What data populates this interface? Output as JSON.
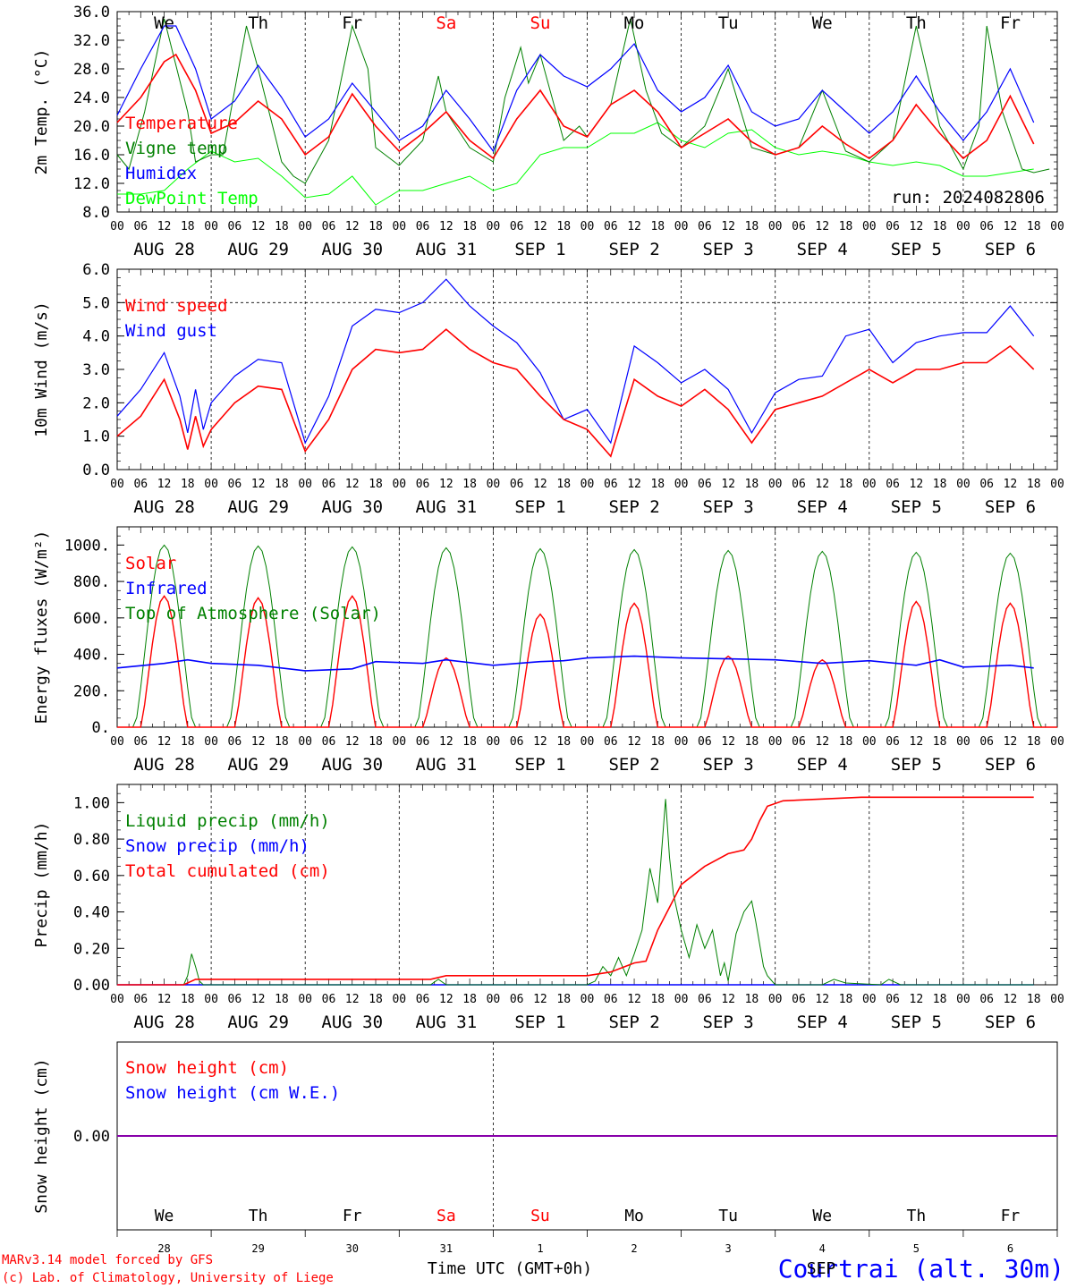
{
  "footer": {
    "credit_line1": "MARv3.14 model forced by GFS",
    "credit_line2": "(c) Lab. of Climatology, University of Liege",
    "time_axis_title": "Time UTC (GMT+0h)",
    "station": "Courtrai (alt. 30m)",
    "overlay_label": "SEP"
  },
  "colors": {
    "temperature": "#ff0000",
    "vigne": "#008000",
    "humidex": "#0000ff",
    "dewpoint": "#00ff00",
    "weekend": "#ff0000",
    "axis": "#000000",
    "snow": "#8800aa",
    "station": "#0000ff"
  },
  "days": {
    "weekday_labels": [
      "We",
      "Th",
      "Fr",
      "Sa",
      "Su",
      "Mo",
      "Tu",
      "We",
      "Th",
      "Fr"
    ],
    "weekend_days": [
      3,
      4
    ],
    "date_labels": [
      "AUG 28",
      "AUG 29",
      "AUG 30",
      "AUG 31",
      "SEP  1",
      "SEP  2",
      "SEP  3",
      "SEP  4",
      "SEP  5",
      "SEP  6"
    ],
    "hour_ticks": [
      "00",
      "06",
      "12",
      "18"
    ],
    "end_tick": "00",
    "day_numbers": [
      "28",
      "29",
      "30",
      "31",
      "1",
      "2",
      "3",
      "4",
      "5",
      "6"
    ]
  },
  "chart_data": [
    {
      "type": "line",
      "ylabel": "2m Temp. (°C)",
      "ylim": [
        8,
        36
      ],
      "yticks": [
        "8.0",
        "12.0",
        "16.0",
        "20.0",
        "24.0",
        "28.0",
        "32.0",
        "36.0"
      ],
      "annotation": "run: 2024082806",
      "x_hours_from": "AUG 28 00 UTC",
      "legend": [
        "Temperature",
        "Vigne temp",
        "Humidex",
        "DewPoint Temp"
      ],
      "series": [
        {
          "name": "Temperature",
          "x": [
            0,
            6,
            12,
            15,
            20,
            24,
            30,
            36,
            42,
            48,
            54,
            60,
            66,
            72,
            78,
            84,
            90,
            96,
            102,
            108,
            114,
            120,
            126,
            132,
            138,
            144,
            150,
            156,
            162,
            168,
            174,
            180,
            186,
            192,
            198,
            204,
            210,
            216,
            222,
            228,
            234
          ],
          "values": [
            20.5,
            24,
            29,
            30,
            25,
            19,
            20.5,
            23.5,
            21,
            16,
            18.5,
            24.5,
            20,
            16.5,
            19,
            22,
            18,
            15.5,
            21,
            25,
            20,
            18.5,
            23,
            25,
            22,
            17,
            19,
            21,
            17.8,
            16,
            17,
            20,
            17.5,
            15.5,
            18,
            23,
            19,
            15.5,
            18,
            24.2,
            17.5
          ]
        },
        {
          "name": "Vigne temp",
          "x": [
            0,
            3,
            7,
            12,
            18,
            20,
            24,
            27,
            33,
            36,
            42,
            45,
            48,
            54,
            60,
            64,
            66,
            72,
            78,
            82,
            84,
            90,
            96,
            99,
            103,
            105,
            108,
            112,
            114,
            118,
            120,
            126,
            131,
            135,
            139,
            144,
            150,
            156,
            162,
            168,
            174,
            180,
            186,
            192,
            198,
            204,
            210,
            216,
            220,
            222,
            226,
            231,
            234,
            238
          ],
          "values": [
            16,
            14,
            22,
            35,
            22,
            15,
            16,
            16,
            34,
            28,
            15,
            13,
            12,
            18,
            34,
            28,
            17,
            14.5,
            18,
            27,
            22,
            17,
            15,
            24,
            31,
            26,
            30,
            22,
            18,
            20,
            18.5,
            23,
            35,
            25,
            19,
            17,
            20,
            28,
            17,
            16,
            17,
            25,
            16.5,
            15,
            18,
            34,
            20,
            14,
            20,
            34,
            22,
            14,
            13.5,
            14
          ]
        },
        {
          "name": "Humidex",
          "x": [
            0,
            6,
            12,
            15,
            20,
            24,
            30,
            36,
            42,
            48,
            54,
            60,
            66,
            72,
            78,
            84,
            90,
            96,
            102,
            108,
            114,
            120,
            126,
            132,
            138,
            144,
            150,
            156,
            162,
            168,
            174,
            180,
            186,
            192,
            198,
            204,
            210,
            216,
            222,
            228,
            234
          ],
          "values": [
            21.5,
            28,
            34,
            34,
            28,
            21,
            23.5,
            28.5,
            24,
            18.5,
            21,
            26,
            22,
            18,
            20,
            25,
            21,
            16.5,
            25,
            30,
            27,
            25.5,
            28,
            31.5,
            25,
            22,
            24,
            28.5,
            22,
            20,
            21,
            25,
            22,
            19,
            22,
            27,
            22,
            18,
            22,
            28,
            20.5
          ]
        },
        {
          "name": "DewPoint Temp",
          "x": [
            0,
            6,
            12,
            18,
            24,
            30,
            36,
            42,
            48,
            54,
            60,
            66,
            72,
            78,
            84,
            90,
            96,
            102,
            108,
            114,
            120,
            126,
            132,
            138,
            144,
            150,
            156,
            162,
            168,
            174,
            180,
            186,
            192,
            198,
            204,
            210,
            216,
            222,
            228,
            234
          ],
          "values": [
            10.5,
            10.5,
            11,
            14,
            16.5,
            15,
            15.5,
            13,
            10,
            10.5,
            13,
            9,
            11,
            11,
            12,
            13,
            11,
            12,
            16,
            17,
            17,
            19,
            19,
            20.5,
            18,
            17,
            19,
            19.5,
            17,
            16,
            16.5,
            16,
            15,
            14.5,
            15,
            14.5,
            13,
            13,
            13.5,
            14
          ]
        }
      ]
    },
    {
      "type": "line",
      "ylabel": "10m Wind (m/s)",
      "ylim": [
        0,
        6
      ],
      "yticks": [
        "0.0",
        "1.0",
        "2.0",
        "3.0",
        "4.0",
        "5.0",
        "6.0"
      ],
      "reference_line": 5,
      "x_hours_from": "AUG 28 00 UTC",
      "legend": [
        "Wind speed",
        "Wind gust"
      ],
      "series": [
        {
          "name": "Wind speed",
          "x": [
            0,
            6,
            12,
            16,
            18,
            20,
            22,
            24,
            30,
            36,
            42,
            48,
            54,
            60,
            66,
            72,
            78,
            84,
            90,
            96,
            102,
            108,
            114,
            120,
            126,
            132,
            138,
            144,
            150,
            156,
            162,
            168,
            174,
            180,
            186,
            192,
            198,
            204,
            210,
            216,
            222,
            228,
            234
          ],
          "values": [
            1,
            1.6,
            2.7,
            1.5,
            0.6,
            1.6,
            0.7,
            1.2,
            2,
            2.5,
            2.4,
            0.55,
            1.5,
            3,
            3.6,
            3.5,
            3.6,
            4.2,
            3.6,
            3.2,
            3,
            2.2,
            1.5,
            1.2,
            0.4,
            2.7,
            2.2,
            1.9,
            2.4,
            1.8,
            0.8,
            1.8,
            2,
            2.2,
            2.6,
            3,
            2.6,
            3,
            3,
            3.2,
            3.2,
            3.7,
            3
          ]
        },
        {
          "name": "Wind gust",
          "x": [
            0,
            6,
            12,
            16,
            18,
            20,
            22,
            24,
            30,
            36,
            42,
            48,
            54,
            60,
            66,
            72,
            78,
            84,
            90,
            96,
            102,
            108,
            114,
            120,
            126,
            132,
            138,
            144,
            150,
            156,
            162,
            168,
            174,
            180,
            186,
            192,
            198,
            204,
            210,
            216,
            222,
            228,
            234
          ],
          "values": [
            1.6,
            2.4,
            3.5,
            2.2,
            1.1,
            2.4,
            1.2,
            2,
            2.8,
            3.3,
            3.2,
            0.8,
            2.2,
            4.3,
            4.8,
            4.7,
            5,
            5.7,
            4.9,
            4.3,
            3.8,
            2.9,
            1.5,
            1.8,
            0.8,
            3.7,
            3.2,
            2.6,
            3,
            2.4,
            1.1,
            2.3,
            2.7,
            2.8,
            4,
            4.2,
            3.2,
            3.8,
            4,
            4.1,
            4.1,
            4.9,
            4
          ]
        }
      ]
    },
    {
      "type": "line",
      "ylabel": "Energy fluxes (W/m²)",
      "ylim": [
        0,
        1100
      ],
      "yticks": [
        "0.",
        "200.",
        "400.",
        "600.",
        "800.",
        "1000."
      ],
      "x_hours_from": "AUG 28 00 UTC",
      "legend": [
        "Solar",
        "Infrared",
        "Top of Atmosphere (Solar)"
      ],
      "daily_toa_peak": [
        1000,
        995,
        990,
        985,
        980,
        975,
        970,
        965,
        960,
        955
      ],
      "daily_solar_peak": [
        720,
        710,
        720,
        380,
        620,
        680,
        390,
        370,
        690,
        680
      ],
      "series": [
        {
          "name": "Infrared",
          "x": [
            0,
            12,
            18,
            24,
            36,
            48,
            60,
            66,
            72,
            78,
            84,
            96,
            108,
            114,
            120,
            132,
            144,
            156,
            168,
            174,
            180,
            192,
            204,
            210,
            216,
            228,
            234
          ],
          "values": [
            325,
            350,
            370,
            350,
            340,
            310,
            320,
            360,
            355,
            350,
            370,
            340,
            360,
            365,
            380,
            390,
            380,
            375,
            370,
            360,
            350,
            365,
            340,
            370,
            330,
            340,
            325
          ]
        }
      ]
    },
    {
      "type": "line",
      "ylabel": "Precip (mm/h)",
      "ylim": [
        0,
        1.1
      ],
      "yticks": [
        "0.00",
        "0.20",
        "0.40",
        "0.60",
        "0.80",
        "1.00"
      ],
      "x_hours_from": "AUG 28 00 UTC",
      "legend": [
        "Liquid precip (mm/h)",
        "Snow precip (mm/h)",
        "Total cumulated (cm)"
      ],
      "series": [
        {
          "name": "Liquid precip (mm/h)",
          "x": [
            0,
            17,
            18,
            19,
            20,
            21,
            22,
            80,
            82,
            84,
            120,
            122,
            124,
            126,
            128,
            130,
            132,
            134,
            136,
            138,
            140,
            141,
            142,
            144,
            146,
            148,
            150,
            152,
            154,
            155,
            156,
            158,
            160,
            162,
            163,
            165,
            166,
            168,
            180,
            183,
            186,
            195,
            197,
            200,
            234
          ],
          "values": [
            0,
            0,
            0.05,
            0.17,
            0.1,
            0.02,
            0,
            0,
            0.03,
            0,
            0,
            0.02,
            0.1,
            0.05,
            0.15,
            0.05,
            0.17,
            0.3,
            0.64,
            0.45,
            1.02,
            0.7,
            0.5,
            0.3,
            0.15,
            0.33,
            0.2,
            0.3,
            0.05,
            0.12,
            0.02,
            0.28,
            0.4,
            0.46,
            0.35,
            0.1,
            0.05,
            0,
            0,
            0.03,
            0.01,
            0,
            0.03,
            0,
            0
          ]
        },
        {
          "name": "Snow precip (mm/h)",
          "x": [
            0,
            234
          ],
          "values": [
            0,
            0
          ]
        },
        {
          "name": "Total cumulated (cm)",
          "x": [
            0,
            17,
            20,
            80,
            84,
            120,
            126,
            132,
            135,
            138,
            144,
            150,
            156,
            160,
            162,
            164,
            166,
            170,
            180,
            190,
            200,
            234
          ],
          "values": [
            0,
            0,
            0.03,
            0.03,
            0.05,
            0.05,
            0.07,
            0.12,
            0.13,
            0.3,
            0.55,
            0.65,
            0.72,
            0.74,
            0.8,
            0.9,
            0.98,
            1.01,
            1.02,
            1.03,
            1.03,
            1.03
          ]
        }
      ]
    },
    {
      "type": "line",
      "ylabel": "Snow height (cm)",
      "yticks": [
        "0.00"
      ],
      "x_hours_from": "AUG 28 00 UTC",
      "legend": [
        "Snow height (cm)",
        "Snow height (cm W.E.)"
      ],
      "series": [
        {
          "name": "Snow height (cm)",
          "x": [
            0,
            240
          ],
          "values": [
            0,
            0
          ]
        },
        {
          "name": "Snow height (cm W.E.)",
          "x": [
            0,
            240
          ],
          "values": [
            0,
            0
          ]
        }
      ]
    }
  ]
}
